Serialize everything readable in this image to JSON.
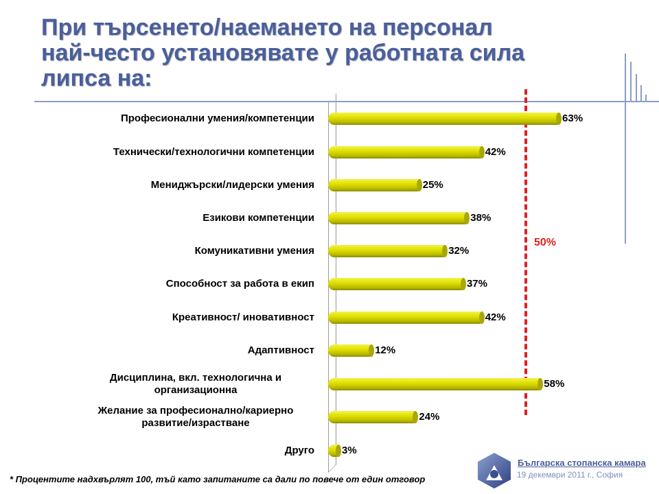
{
  "title_lines": [
    "При търсенето/наемането на персонал",
    "най-често установявате у работната сила",
    "липса на:"
  ],
  "footnote": "* Процентите надхвърлят 100, тъй като запитаните са дали по повече от един отговор",
  "organization": "Българска стопанска камара",
  "date": "19 декември 2011 г., София",
  "colors": {
    "bar": "#e0e000",
    "threshold": "#e02020",
    "title": "#4a5f9a"
  },
  "chart_data": {
    "type": "bar",
    "orientation": "horizontal",
    "categories": [
      "Професионални умения/компетенции",
      "Технически/технологични компетенции",
      "Мениджърски/лидерски умения",
      "Езикови компетенции",
      "Комуникативни умения",
      "Способност за работа в екип",
      "Креативност/ иновативност",
      "Адаптивност",
      "Дисциплина, вкл. технологична и организационна",
      "Желание за професионално/кариерно развитие/израстване",
      "Друго"
    ],
    "values": [
      63,
      42,
      25,
      38,
      32,
      37,
      42,
      12,
      58,
      24,
      3
    ],
    "value_labels": [
      "63%",
      "42%",
      "25%",
      "38%",
      "32%",
      "37%",
      "42%",
      "12%",
      "58%",
      "24%",
      "3%"
    ],
    "threshold": {
      "value": 50,
      "label": "50%"
    },
    "xlim": [
      0,
      100
    ]
  }
}
